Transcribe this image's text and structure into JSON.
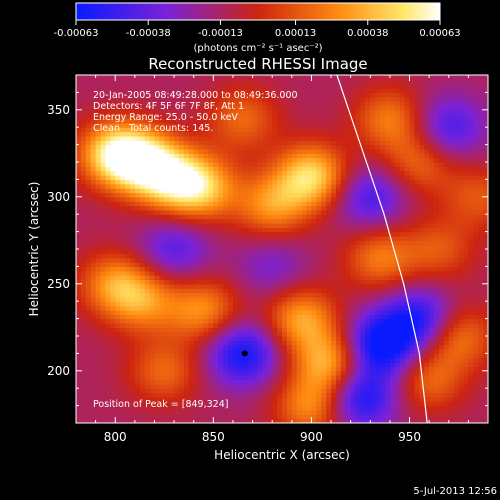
{
  "chart_data": {
    "type": "heatmap",
    "title": "Reconstructed RHESSI Image",
    "xlabel": "Heliocentric X (arcsec)",
    "ylabel": "Heliocentric Y (arcsec)",
    "xlim": [
      780,
      990
    ],
    "ylim": [
      170,
      370
    ],
    "x_ticks": [
      800,
      850,
      900,
      950
    ],
    "y_ticks": [
      200,
      250,
      300,
      350
    ],
    "colorbar": {
      "min": -0.00063,
      "max": 0.00063,
      "ticks": [
        "-0.00063",
        "-0.00038",
        "-0.00013",
        "0.00013",
        "0.00038",
        "0.00063"
      ],
      "unit_label": "(photons cm⁻² s⁻¹ asec⁻²)",
      "colors": [
        "#0a1aff",
        "#7b22d8",
        "#cc2410",
        "#ff8a10",
        "#ffe86a",
        "#ffffff"
      ]
    },
    "annotations": [
      "20-Jan-2005 08:49:28.000 to 08:49:36.000",
      "Detectors: 4F 5F 6F 7F 8F, Att 1",
      "Energy Range: 25.0 - 50.0 keV",
      "Clean   Total counts: 145."
    ],
    "peak": {
      "label": "Position of Peak = [849,324]",
      "x": 849,
      "y": 324
    },
    "marker": {
      "x": 866,
      "y": 210
    },
    "limb_curve": [
      [
        913,
        370
      ],
      [
        925,
        330
      ],
      [
        937,
        290
      ],
      [
        947,
        250
      ],
      [
        955,
        210
      ],
      [
        959,
        170
      ]
    ],
    "hot_spots": [
      {
        "x": 800,
        "y": 325,
        "v": 0.00063
      },
      {
        "x": 815,
        "y": 320,
        "v": 0.00055
      },
      {
        "x": 830,
        "y": 310,
        "v": 0.0005
      },
      {
        "x": 845,
        "y": 305,
        "v": 0.00045
      },
      {
        "x": 900,
        "y": 312,
        "v": 0.0006
      },
      {
        "x": 880,
        "y": 295,
        "v": 0.0004
      },
      {
        "x": 865,
        "y": 345,
        "v": 0.0003
      },
      {
        "x": 940,
        "y": 345,
        "v": 0.00035
      },
      {
        "x": 955,
        "y": 320,
        "v": 0.0003
      },
      {
        "x": 800,
        "y": 250,
        "v": 0.0004
      },
      {
        "x": 815,
        "y": 240,
        "v": 0.00035
      },
      {
        "x": 845,
        "y": 235,
        "v": 0.0004
      },
      {
        "x": 895,
        "y": 230,
        "v": 0.00045
      },
      {
        "x": 910,
        "y": 205,
        "v": 0.0005
      },
      {
        "x": 900,
        "y": 180,
        "v": 0.0004
      },
      {
        "x": 935,
        "y": 265,
        "v": 0.00035
      },
      {
        "x": 965,
        "y": 270,
        "v": 0.00025
      },
      {
        "x": 975,
        "y": 220,
        "v": 0.00035
      },
      {
        "x": 960,
        "y": 195,
        "v": 0.0003
      },
      {
        "x": 825,
        "y": 200,
        "v": 0.0003
      },
      {
        "x": 985,
        "y": 300,
        "v": 0.00025
      },
      {
        "x": 865,
        "y": 210,
        "v": -0.0005
      },
      {
        "x": 935,
        "y": 215,
        "v": -0.0006
      },
      {
        "x": 925,
        "y": 185,
        "v": -0.0005
      },
      {
        "x": 955,
        "y": 230,
        "v": -0.00045
      },
      {
        "x": 830,
        "y": 270,
        "v": -0.0003
      },
      {
        "x": 930,
        "y": 300,
        "v": -0.00035
      },
      {
        "x": 970,
        "y": 340,
        "v": -0.00035
      },
      {
        "x": 880,
        "y": 260,
        "v": -0.0002
      }
    ]
  },
  "footer": {
    "date": "5-Jul-2013 12:56"
  }
}
